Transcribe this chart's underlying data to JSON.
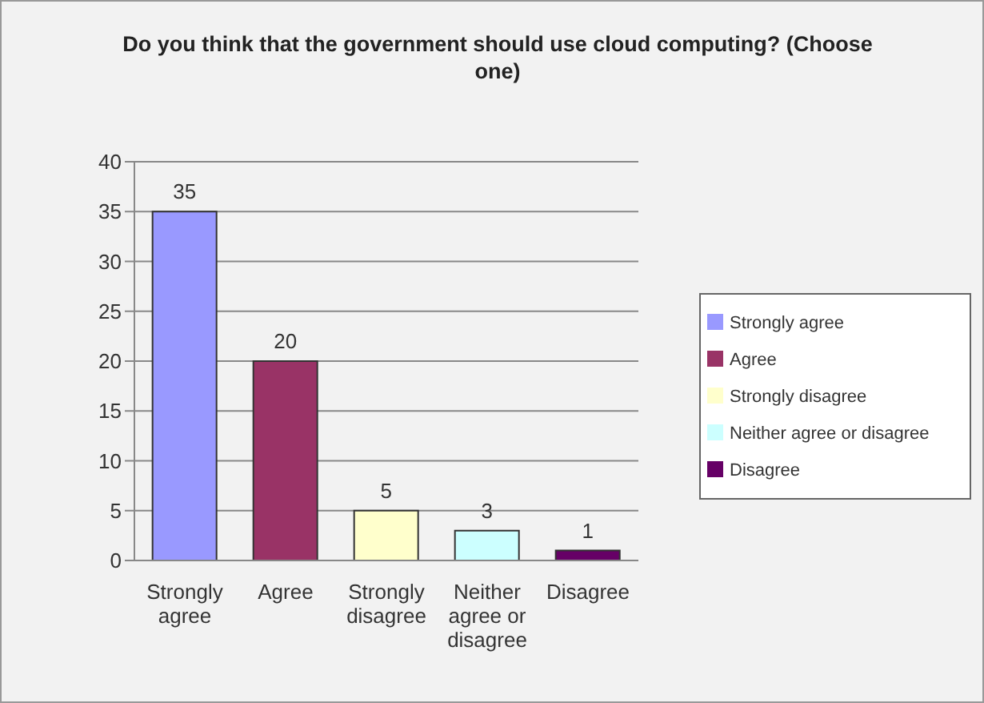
{
  "chart_data": {
    "type": "bar",
    "title": "Do you think that the government should use cloud computing? (Choose one)",
    "categories": [
      "Strongly agree",
      "Agree",
      "Strongly disagree",
      "Neither agree or disagree",
      "Disagree"
    ],
    "series": [
      {
        "name": "Strongly agree",
        "color": "#9999ff",
        "values": [
          35,
          null,
          null,
          null,
          null
        ]
      },
      {
        "name": "Agree",
        "color": "#993366",
        "values": [
          null,
          20,
          null,
          null,
          null
        ]
      },
      {
        "name": "Strongly disagree",
        "color": "#ffffcc",
        "values": [
          null,
          null,
          5,
          null,
          null
        ]
      },
      {
        "name": "Neither agree or disagree",
        "color": "#ccffff",
        "values": [
          null,
          null,
          null,
          3,
          null
        ]
      },
      {
        "name": "Disagree",
        "color": "#660066",
        "values": [
          null,
          null,
          null,
          null,
          1
        ]
      }
    ],
    "stacked": true,
    "ylim": [
      0,
      40
    ],
    "yticks": [
      0,
      5,
      10,
      15,
      20,
      25,
      30,
      35,
      40
    ],
    "grid": "y",
    "data_labels": true,
    "legend": "right"
  }
}
